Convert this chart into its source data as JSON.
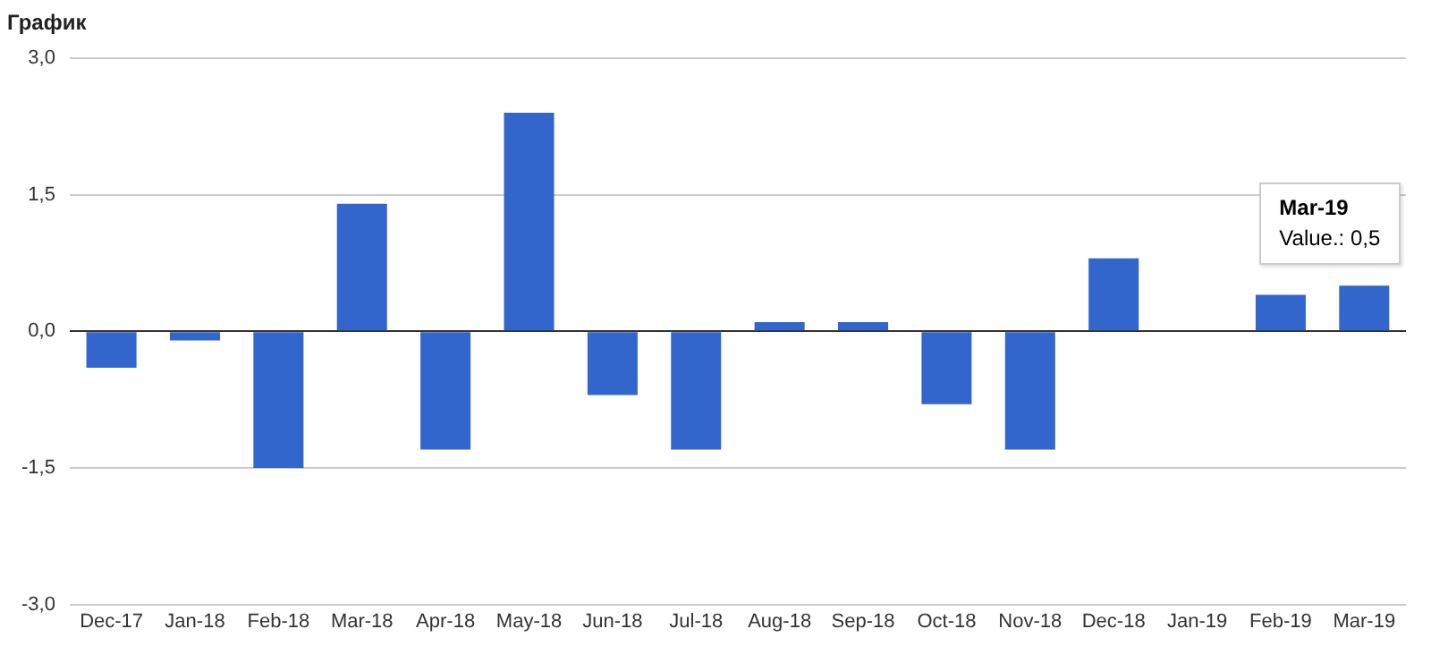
{
  "chart_data": {
    "type": "bar",
    "title": "График",
    "categories": [
      "Dec-17",
      "Jan-18",
      "Feb-18",
      "Mar-18",
      "Apr-18",
      "May-18",
      "Jun-18",
      "Jul-18",
      "Aug-18",
      "Sep-18",
      "Oct-18",
      "Nov-18",
      "Dec-18",
      "Jan-19",
      "Feb-19",
      "Mar-19"
    ],
    "values": [
      -0.4,
      -0.1,
      -1.5,
      1.4,
      -1.3,
      2.4,
      -0.7,
      -1.3,
      0.1,
      0.1,
      -0.8,
      -1.3,
      0.8,
      0,
      0.4,
      0.5
    ],
    "color": "#3366cc",
    "ylim": [
      -3,
      3
    ],
    "yticks": [
      {
        "value": -3,
        "label": "-3,0"
      },
      {
        "value": -1.5,
        "label": "-1,5"
      },
      {
        "value": 0,
        "label": "0,0"
      },
      {
        "value": 1.5,
        "label": "1,5"
      },
      {
        "value": 3,
        "label": "3,0"
      }
    ],
    "grid": "y",
    "annotations": [
      "Mar-19",
      "Value.: 0,5"
    ]
  }
}
